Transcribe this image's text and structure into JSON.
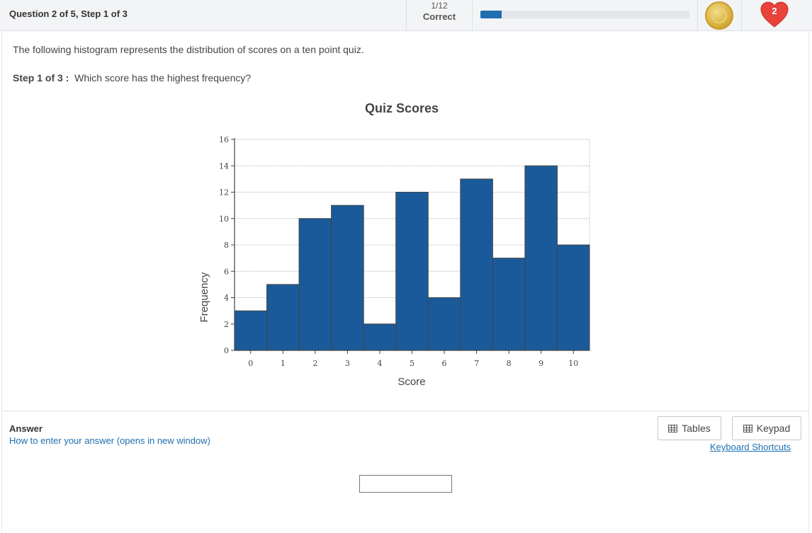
{
  "header": {
    "question_title": "Question 2 of 5, Step 1 of 3",
    "score_fraction": "1/12",
    "score_label": "Correct",
    "progress_fraction": 0.1,
    "lives_count": "2",
    "coin_icon": "coin-icon",
    "heart_icon": "heart-icon"
  },
  "question": {
    "prompt": "The following histogram represents the distribution of scores on a ten point quiz.",
    "step_label": "Step 1 of 3 :",
    "step_text": "Which score has the highest frequency?"
  },
  "chart_data": {
    "type": "bar",
    "title": "Quiz Scores",
    "xlabel": "Score",
    "ylabel": "Frequency",
    "categories": [
      "0",
      "1",
      "2",
      "3",
      "4",
      "5",
      "6",
      "7",
      "8",
      "9",
      "10"
    ],
    "values": [
      3,
      5,
      10,
      11,
      2,
      12,
      4,
      13,
      7,
      14,
      8
    ],
    "yticks": [
      "0",
      "2",
      "4",
      "6",
      "8",
      "10",
      "12",
      "14",
      "16"
    ],
    "ylim": [
      0,
      16
    ],
    "grid": true,
    "bar_color": "#1a5a9a"
  },
  "answer": {
    "label": "Answer",
    "help_link": "How to enter your answer (opens in new window)",
    "tables_label": "Tables",
    "keypad_label": "Keypad",
    "shortcuts_link": "Keyboard Shortcuts",
    "input_value": ""
  },
  "colors": {
    "accent": "#1e6fb0",
    "heart": "#e8423b",
    "coin": "#d9b13e"
  }
}
